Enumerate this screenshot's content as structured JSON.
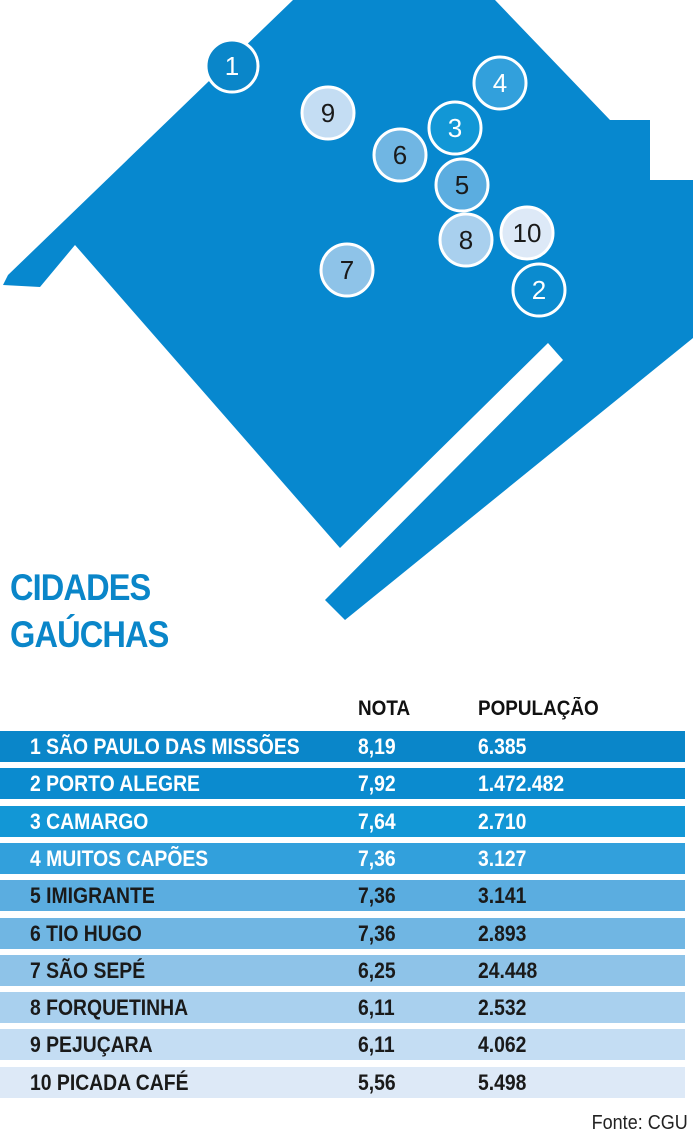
{
  "title_line1": "CIDADES",
  "title_line2": "GAÚCHAS",
  "colors": {
    "map": "#0788cf",
    "title": "#0a86c9"
  },
  "table": {
    "headers": {
      "nota": "NOTA",
      "populacao": "POPULAÇÃO"
    },
    "rows": [
      {
        "rank": "1",
        "name": "1 SÃO PAULO DAS MISSÕES",
        "nota": "8,19",
        "populacao": "6.385",
        "color": "#0a86c9",
        "text": "#ffffff"
      },
      {
        "rank": "2",
        "name": "2 PORTO ALEGRE",
        "nota": "7,92",
        "populacao": "1.472.482",
        "color": "#0b8bcf",
        "text": "#ffffff"
      },
      {
        "rank": "3",
        "name": "3 CAMARGO",
        "nota": "7,64",
        "populacao": "2.710",
        "color": "#1297d6",
        "text": "#ffffff"
      },
      {
        "rank": "4",
        "name": "4 MUITOS CAPÕES",
        "nota": "7,36",
        "populacao": "3.127",
        "color": "#32a0dc",
        "text": "#ffffff"
      },
      {
        "rank": "5",
        "name": "5 IMIGRANTE",
        "nota": "7,36",
        "populacao": "3.141",
        "color": "#5badE0",
        "text": "#1a1a1a"
      },
      {
        "rank": "6",
        "name": "6 TIO HUGO",
        "nota": "7,36",
        "populacao": "2.893",
        "color": "#70b6e3",
        "text": "#1a1a1a"
      },
      {
        "rank": "7",
        "name": "7 SÃO SEPÉ",
        "nota": "6,25",
        "populacao": "24.448",
        "color": "#8ec3e8",
        "text": "#1a1a1a"
      },
      {
        "rank": "8",
        "name": "8 FORQUETINHA",
        "nota": "6,11",
        "populacao": "2.532",
        "color": "#a9d0ee",
        "text": "#1a1a1a"
      },
      {
        "rank": "9",
        "name": "9 PEJUÇARA",
        "nota": "6,11",
        "populacao": "4.062",
        "color": "#c4ddf3",
        "text": "#1a1a1a"
      },
      {
        "rank": "10",
        "name": "10 PICADA CAFÉ",
        "nota": "5,56",
        "populacao": "5.498",
        "color": "#dde9f7",
        "text": "#1a1a1a"
      }
    ]
  },
  "source": "Fonte: CGU"
}
